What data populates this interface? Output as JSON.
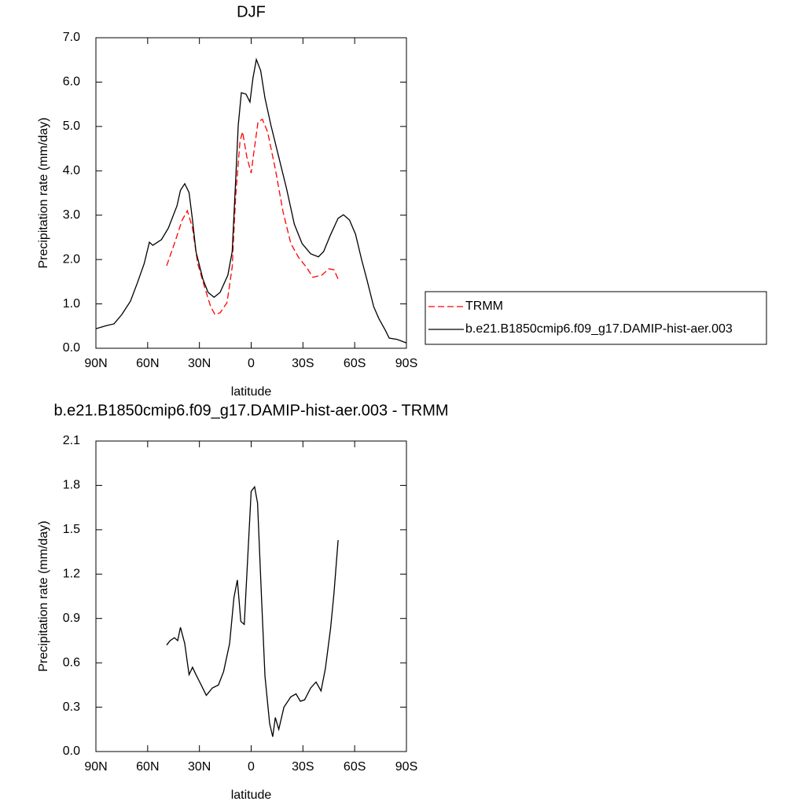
{
  "chart_data": [
    {
      "type": "line",
      "title": "DJF",
      "x_label": "latitude",
      "y_label": "Precipitation rate (mm/day)",
      "xlim": [
        90,
        -90
      ],
      "ylim": [
        0,
        7
      ],
      "xticks": [
        {
          "value": 90,
          "label": "90N"
        },
        {
          "value": 60,
          "label": "60N"
        },
        {
          "value": 30,
          "label": "30N"
        },
        0,
        {
          "value": -30,
          "label": "30S"
        },
        {
          "value": -60,
          "label": "60S"
        },
        {
          "value": -90,
          "label": "90S"
        }
      ],
      "yticks": [
        {
          "value": 0,
          "label": "0.0"
        },
        {
          "value": 1,
          "label": "1.0"
        },
        {
          "value": 2,
          "label": "2.0"
        },
        {
          "value": 3,
          "label": "3.0"
        },
        {
          "value": 4,
          "label": "4.0"
        },
        {
          "value": 5,
          "label": "5.0"
        },
        {
          "value": 6,
          "label": "6.0"
        },
        {
          "value": 7,
          "label": "7.0"
        }
      ],
      "legend": "outside-right",
      "series": [
        {
          "name": "TRMM",
          "color": "#ff0000",
          "dash": "dashed",
          "x": [
            49,
            44.5,
            40,
            37,
            34,
            31,
            27,
            23.5,
            21,
            18,
            14,
            11,
            9,
            6.5,
            5,
            2.5,
            0,
            -1.5,
            -4,
            -6.5,
            -9.5,
            -14,
            -18.5,
            -23,
            -27.6,
            -32,
            -35.8,
            -41,
            -45,
            -48,
            -50.4
          ],
          "values": [
            1.86,
            2.36,
            2.89,
            3.1,
            2.71,
            1.91,
            1.38,
            0.94,
            0.76,
            0.8,
            1.03,
            1.83,
            3.42,
            4.66,
            4.88,
            4.31,
            3.95,
            4.4,
            5.11,
            5.16,
            4.88,
            4.04,
            3.07,
            2.36,
            2.04,
            1.83,
            1.6,
            1.65,
            1.79,
            1.77,
            1.56
          ]
        },
        {
          "name": "b.e21.B1850cmip6.f09_g17.DAMIP-hist-aer.003",
          "color": "#000000",
          "dash": "solid",
          "x": [
            90,
            84,
            79.5,
            75,
            70,
            66,
            62,
            59,
            57,
            52,
            48,
            43,
            41,
            38.5,
            36,
            34,
            32,
            28,
            25,
            21.5,
            18,
            13.5,
            11,
            9,
            7.5,
            5.7,
            3,
            0.7,
            -1,
            -3,
            -5.5,
            -8,
            -11.5,
            -16,
            -20.5,
            -25,
            -29.5,
            -34.5,
            -39,
            -42,
            -45.8,
            -50.4,
            -53.5,
            -57,
            -60.5,
            -64,
            -67,
            -71,
            -74,
            -77.7,
            -80,
            -84.6,
            -90
          ],
          "values": [
            0.44,
            0.51,
            0.55,
            0.76,
            1.06,
            1.47,
            1.91,
            2.39,
            2.32,
            2.45,
            2.71,
            3.21,
            3.56,
            3.71,
            3.51,
            2.89,
            2.18,
            1.56,
            1.26,
            1.15,
            1.26,
            1.65,
            2.18,
            3.78,
            5.02,
            5.76,
            5.73,
            5.55,
            6.08,
            6.51,
            6.26,
            5.64,
            5.02,
            4.31,
            3.6,
            2.8,
            2.36,
            2.13,
            2.06,
            2.18,
            2.54,
            2.93,
            3.01,
            2.89,
            2.57,
            2.0,
            1.56,
            0.94,
            0.67,
            0.41,
            0.23,
            0.2,
            0.12
          ]
        }
      ]
    },
    {
      "type": "line",
      "title": "b.e21.B1850cmip6.f09_g17.DAMIP-hist-aer.003 - TRMM",
      "x_label": "latitude",
      "y_label": "Precipitation rate (mm/day)",
      "xlim": [
        90,
        -90
      ],
      "ylim": [
        0,
        2.1
      ],
      "xticks": [
        {
          "value": 90,
          "label": "90N"
        },
        {
          "value": 60,
          "label": "60N"
        },
        {
          "value": 30,
          "label": "30N"
        },
        0,
        {
          "value": -30,
          "label": "30S"
        },
        {
          "value": -60,
          "label": "60S"
        },
        {
          "value": -90,
          "label": "90S"
        }
      ],
      "yticks": [
        {
          "value": 0,
          "label": "0.0"
        },
        0.3,
        0.6,
        0.9,
        1.2,
        1.5,
        1.8,
        2.1
      ],
      "series": [
        {
          "color": "#000000",
          "dash": "solid",
          "x": [
            49,
            47,
            44.5,
            42.6,
            41,
            38.5,
            36,
            34,
            32,
            29.4,
            26,
            22.5,
            19,
            16,
            12.5,
            10,
            8,
            6,
            4,
            2,
            0,
            -2,
            -3.7,
            -6,
            -8,
            -10.7,
            -12.5,
            -14,
            -16,
            -19,
            -23,
            -26,
            -28.5,
            -31,
            -34.5,
            -37.6,
            -40.5,
            -43,
            -46,
            -48,
            -50.4
          ],
          "values": [
            0.72,
            0.75,
            0.77,
            0.75,
            0.84,
            0.73,
            0.52,
            0.57,
            0.52,
            0.46,
            0.38,
            0.43,
            0.45,
            0.54,
            0.73,
            1.04,
            1.16,
            0.88,
            0.86,
            1.31,
            1.76,
            1.79,
            1.68,
            1.04,
            0.51,
            0.19,
            0.1,
            0.23,
            0.15,
            0.3,
            0.37,
            0.39,
            0.34,
            0.35,
            0.43,
            0.47,
            0.41,
            0.56,
            0.83,
            1.07,
            1.43
          ]
        }
      ]
    }
  ]
}
